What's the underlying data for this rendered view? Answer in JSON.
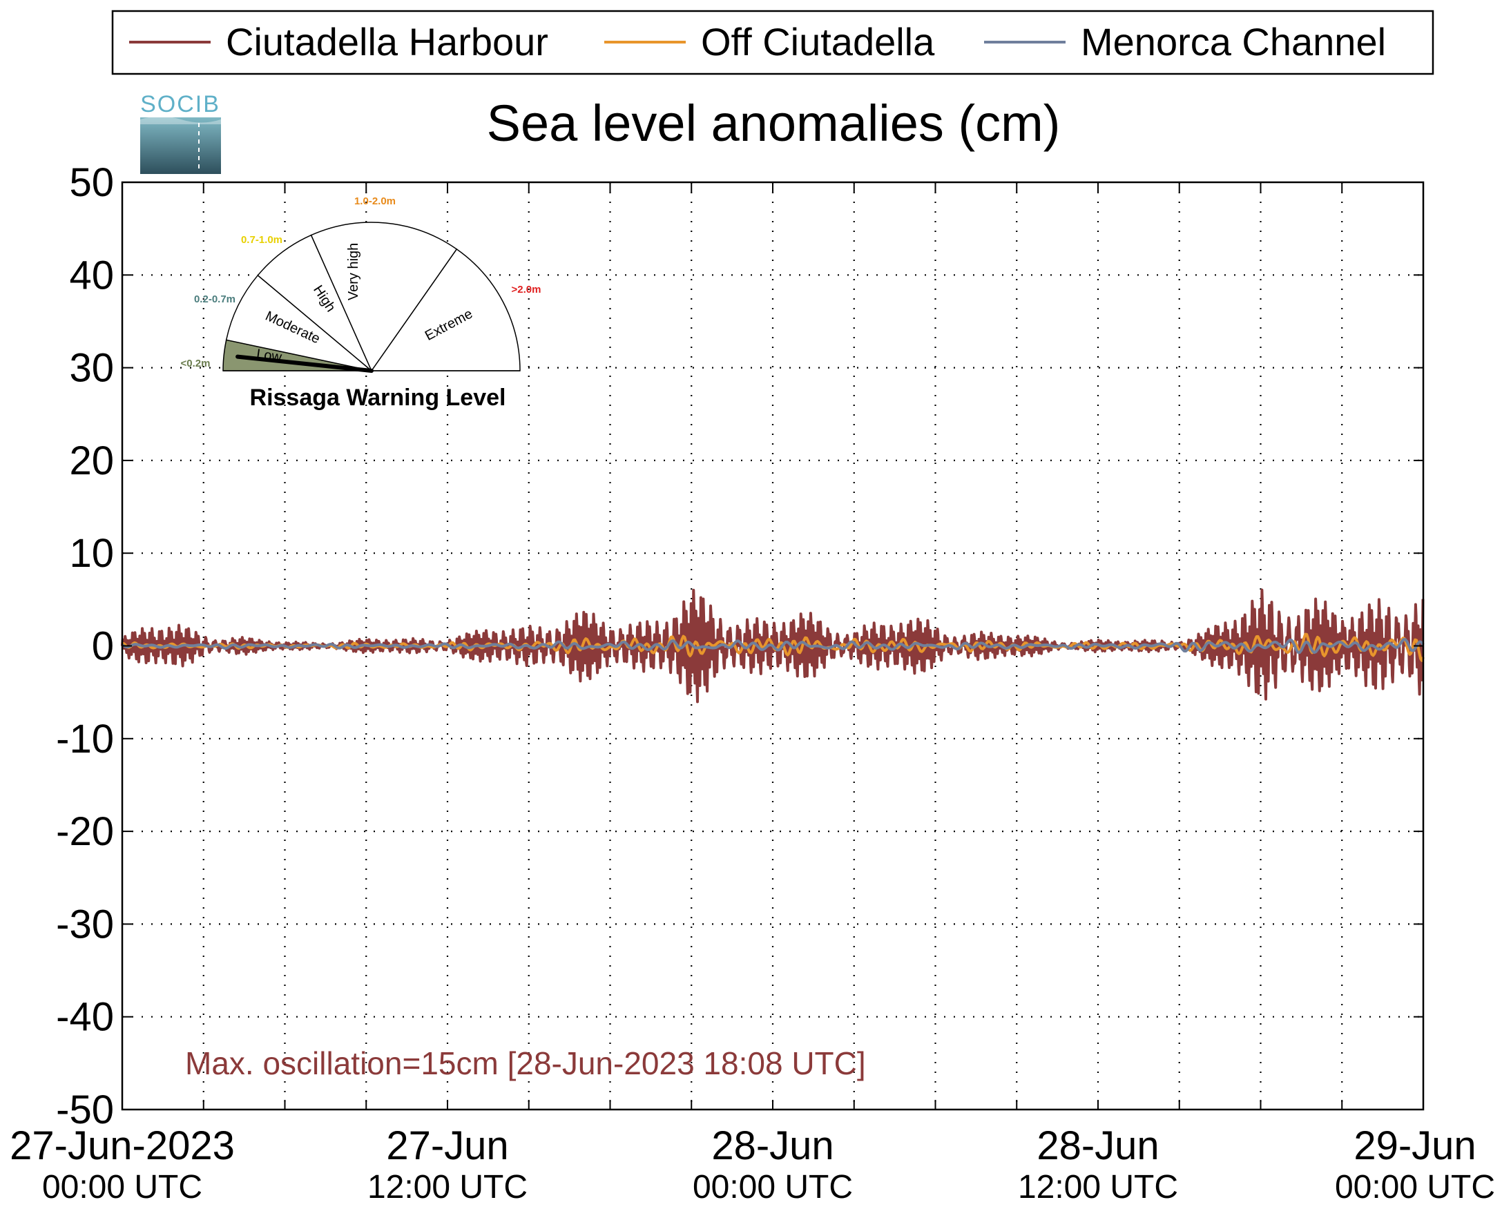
{
  "chart_data": {
    "type": "line",
    "title": "Sea level anomalies (cm)",
    "logo_text": "SOCIB",
    "ylim": [
      -50,
      50
    ],
    "yticks": [
      50,
      40,
      30,
      20,
      10,
      0,
      -10,
      -20,
      -30,
      -40,
      -50
    ],
    "ytick_labels": [
      "50",
      "40",
      "30",
      "20",
      "10",
      "0",
      "-10",
      "-20",
      "-30",
      "-40",
      "-50"
    ],
    "x_unit": "hours since 27-Jun-2023 00:00 UTC",
    "xlim": [
      0,
      48
    ],
    "grid": true,
    "xtick_labels": [
      {
        "x": 0,
        "line1": "27-Jun-2023",
        "line2": "00:00 UTC"
      },
      {
        "x": 12,
        "line1": "27-Jun",
        "line2": "12:00 UTC"
      },
      {
        "x": 24,
        "line1": "28-Jun",
        "line2": "00:00 UTC"
      },
      {
        "x": 36,
        "line1": "28-Jun",
        "line2": "12:00 UTC"
      },
      {
        "x": 48,
        "line1": "29-Jun",
        "line2": "00:00 UTC"
      }
    ],
    "legend_position": "top",
    "series": [
      {
        "name": "Ciutadella Harbour",
        "color": "#8b3a3a",
        "envelope": [
          [
            0,
            1.0
          ],
          [
            1,
            2.0
          ],
          [
            2,
            2.2
          ],
          [
            3,
            1.6
          ],
          [
            4,
            1.0
          ],
          [
            5,
            0.6
          ],
          [
            6,
            0.4
          ],
          [
            8,
            0.5
          ],
          [
            9,
            0.6
          ],
          [
            10,
            0.8
          ],
          [
            11,
            0.9
          ],
          [
            12,
            0.9
          ],
          [
            13,
            1.2
          ],
          [
            14,
            2.2
          ],
          [
            15,
            2.5
          ],
          [
            16,
            3.0
          ],
          [
            17,
            3.0
          ],
          [
            18,
            2.8
          ],
          [
            19,
            3.0
          ],
          [
            20,
            3.8
          ],
          [
            21,
            4.8
          ],
          [
            22,
            4.2
          ],
          [
            23,
            3.5
          ],
          [
            24,
            3.3
          ],
          [
            25,
            3.0
          ],
          [
            26,
            2.5
          ],
          [
            27,
            2.2
          ],
          [
            28,
            2.8
          ],
          [
            29,
            2.6
          ],
          [
            30,
            2.3
          ],
          [
            31,
            1.8
          ],
          [
            32,
            1.4
          ],
          [
            33,
            1.1
          ],
          [
            34,
            0.8
          ],
          [
            35,
            0.6
          ],
          [
            36,
            0.6
          ],
          [
            37,
            0.5
          ],
          [
            38,
            0.6
          ],
          [
            39,
            0.9
          ],
          [
            40,
            1.5
          ],
          [
            41,
            3.0
          ],
          [
            42,
            6.0
          ],
          [
            43,
            6.5
          ],
          [
            44,
            4.5
          ],
          [
            45,
            3.0
          ],
          [
            46,
            5.0
          ],
          [
            47,
            6.5
          ],
          [
            48,
            5.5
          ]
        ]
      },
      {
        "name": "Off Ciutadella",
        "color": "#e8952c",
        "envelope": [
          [
            0,
            0.3
          ],
          [
            6,
            0.2
          ],
          [
            12,
            0.3
          ],
          [
            16,
            0.6
          ],
          [
            20,
            1.0
          ],
          [
            24,
            0.9
          ],
          [
            30,
            0.6
          ],
          [
            36,
            0.3
          ],
          [
            40,
            0.5
          ],
          [
            42,
            1.3
          ],
          [
            44,
            1.0
          ],
          [
            47,
            1.3
          ],
          [
            48,
            1.2
          ]
        ]
      },
      {
        "name": "Menorca Channel",
        "color": "#6f7f9c",
        "envelope": [
          [
            0,
            0.2
          ],
          [
            12,
            0.2
          ],
          [
            20,
            0.5
          ],
          [
            24,
            0.5
          ],
          [
            36,
            0.2
          ],
          [
            42,
            0.7
          ],
          [
            48,
            0.6
          ]
        ]
      }
    ],
    "annotation": "Max. oscillation=15cm [28-Jun-2023 18:08 UTC]",
    "annotation_color": "#8b3a3a"
  },
  "gauge": {
    "title": "Rissaga Warning Level",
    "current_level": "Low",
    "sectors": [
      {
        "label": "Low",
        "range": "<0.2m",
        "range_color": "#6b7d4f",
        "start_deg": 180,
        "end_deg": 168,
        "fill": "#8a9670"
      },
      {
        "label": "Moderate",
        "range": "0.2-0.7m",
        "range_color": "#4b7d7d",
        "start_deg": 168,
        "end_deg": 140,
        "fill": "#ffffff"
      },
      {
        "label": "High",
        "range": "0.7-1.0m",
        "range_color": "#e8d000",
        "start_deg": 140,
        "end_deg": 114,
        "fill": "#ffffff"
      },
      {
        "label": "Very high",
        "range": "1.0-2.0m",
        "range_color": "#e88a1a",
        "start_deg": 114,
        "end_deg": 55,
        "fill": "#ffffff"
      },
      {
        "label": "Extreme",
        "range": ">2.0m",
        "range_color": "#e02020",
        "start_deg": 55,
        "end_deg": 0,
        "fill": "#ffffff"
      }
    ]
  }
}
